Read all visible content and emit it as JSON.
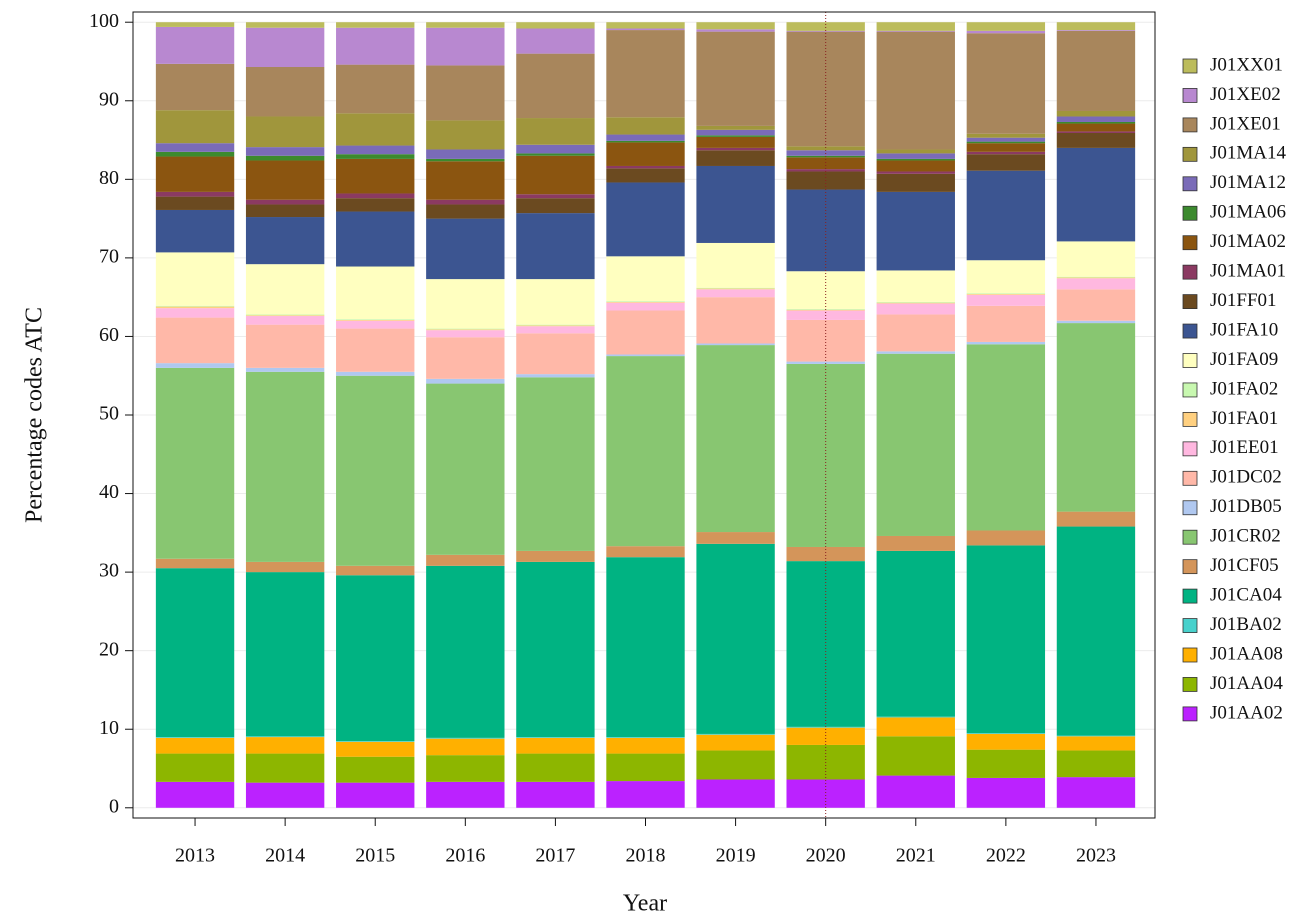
{
  "chart_data": {
    "type": "stacked_bar",
    "x_label": "Year",
    "y_label": "Percentage codes ATC",
    "categories": [
      "2013",
      "2014",
      "2015",
      "2016",
      "2017",
      "2018",
      "2019",
      "2020",
      "2021",
      "2022",
      "2023"
    ],
    "ylim": [
      -1.3,
      101.3
    ],
    "yticks": [
      0,
      10,
      20,
      30,
      40,
      50,
      60,
      70,
      80,
      90,
      100
    ],
    "grid": true,
    "legend": "right",
    "series": [
      {
        "name": "J01AA02",
        "color": "#bb22ff",
        "values": [
          3.3,
          3.2,
          3.2,
          3.3,
          3.3,
          3.4,
          3.6,
          3.6,
          4.1,
          3.8,
          3.9
        ]
      },
      {
        "name": "J01AA04",
        "color": "#8db600",
        "values": [
          3.6,
          3.7,
          3.3,
          3.4,
          3.6,
          3.5,
          3.7,
          4.4,
          5.0,
          3.6,
          3.4
        ]
      },
      {
        "name": "J01AA08",
        "color": "#ffb000",
        "values": [
          2.0,
          2.1,
          1.9,
          2.1,
          2.0,
          2.0,
          2.0,
          2.2,
          2.4,
          2.0,
          1.8
        ]
      },
      {
        "name": "J01BA02",
        "color": "#48d1cc",
        "values": [
          0.1,
          0.1,
          0.1,
          0.1,
          0.1,
          0.1,
          0.1,
          0.1,
          0.1,
          0.1,
          0.1
        ]
      },
      {
        "name": "J01CA04",
        "color": "#00b382",
        "values": [
          21.5,
          20.9,
          21.1,
          21.9,
          22.3,
          22.9,
          24.2,
          21.1,
          21.1,
          23.9,
          26.6
        ]
      },
      {
        "name": "J01CF05",
        "color": "#d4955a",
        "values": [
          1.2,
          1.3,
          1.2,
          1.4,
          1.4,
          1.4,
          1.5,
          1.8,
          1.9,
          1.9,
          1.9
        ]
      },
      {
        "name": "J01CR02",
        "color": "#88c671",
        "values": [
          24.3,
          24.2,
          24.2,
          21.8,
          22.1,
          24.2,
          23.8,
          23.3,
          23.2,
          23.7,
          24.0
        ]
      },
      {
        "name": "J01DB05",
        "color": "#b0c8f0",
        "values": [
          0.6,
          0.5,
          0.5,
          0.6,
          0.4,
          0.2,
          0.2,
          0.3,
          0.3,
          0.3,
          0.3
        ]
      },
      {
        "name": "J01DC02",
        "color": "#ffb8a8",
        "values": [
          5.8,
          5.5,
          5.5,
          5.3,
          5.2,
          5.6,
          5.9,
          5.3,
          4.7,
          4.6,
          4.0
        ]
      },
      {
        "name": "J01EE01",
        "color": "#ffb8e0",
        "values": [
          1.2,
          1.1,
          1.0,
          0.9,
          0.9,
          1.0,
          1.0,
          1.2,
          1.4,
          1.4,
          1.4
        ]
      },
      {
        "name": "J01FA01",
        "color": "#ffd080",
        "values": [
          0.2,
          0.1,
          0.1,
          0.1,
          0.1,
          0.1,
          0.1,
          0.1,
          0.1,
          0.1,
          0.1
        ]
      },
      {
        "name": "J01FA02",
        "color": "#c8f8b0",
        "values": [
          0.1,
          0.1,
          0.1,
          0.1,
          0.1,
          0.1,
          0.1,
          0.1,
          0.1,
          0.1,
          0.1
        ]
      },
      {
        "name": "J01FA09",
        "color": "#ffffc0",
        "values": [
          6.8,
          6.4,
          6.7,
          6.3,
          5.8,
          5.7,
          5.7,
          4.8,
          4.0,
          4.2,
          4.5
        ]
      },
      {
        "name": "J01FA10",
        "color": "#3c5591",
        "values": [
          5.4,
          6.0,
          7.0,
          7.7,
          8.4,
          9.4,
          9.8,
          10.4,
          10.0,
          11.4,
          11.9
        ]
      },
      {
        "name": "J01FF01",
        "color": "#6b4a20",
        "values": [
          1.7,
          1.6,
          1.7,
          1.8,
          1.9,
          1.8,
          2.0,
          2.3,
          2.3,
          2.1,
          1.9
        ]
      },
      {
        "name": "J01MA01",
        "color": "#8b3a62",
        "values": [
          0.6,
          0.6,
          0.6,
          0.6,
          0.5,
          0.3,
          0.3,
          0.3,
          0.3,
          0.3,
          0.2
        ]
      },
      {
        "name": "J01MA02",
        "color": "#8b5510",
        "values": [
          4.5,
          5.0,
          4.4,
          4.9,
          4.9,
          3.0,
          1.4,
          1.5,
          1.4,
          1.1,
          1.0
        ]
      },
      {
        "name": "J01MA06",
        "color": "#3c8a2e",
        "values": [
          0.6,
          0.6,
          0.6,
          0.3,
          0.3,
          0.2,
          0.2,
          0.2,
          0.2,
          0.2,
          0.2
        ]
      },
      {
        "name": "J01MA12",
        "color": "#7a6bb8",
        "values": [
          1.1,
          1.1,
          1.1,
          1.2,
          1.1,
          0.8,
          0.7,
          0.7,
          0.7,
          0.5,
          0.7
        ]
      },
      {
        "name": "J01MA14",
        "color": "#a0963c",
        "values": [
          4.2,
          3.9,
          4.1,
          3.7,
          3.4,
          2.2,
          0.5,
          0.5,
          0.5,
          0.5,
          0.7
        ]
      },
      {
        "name": "J01XE01",
        "color": "#a8865c",
        "values": [
          5.9,
          6.3,
          6.2,
          7.0,
          8.2,
          11.1,
          12.0,
          14.6,
          15.0,
          12.8,
          10.2
        ]
      },
      {
        "name": "J01XE02",
        "color": "#b888d0",
        "values": [
          4.7,
          5.0,
          4.7,
          4.8,
          3.2,
          0.2,
          0.3,
          0.1,
          0.1,
          0.3,
          0.1
        ]
      },
      {
        "name": "J01XX01",
        "color": "#bcbc5c",
        "values": [
          0.6,
          0.7,
          0.7,
          0.7,
          0.8,
          0.8,
          0.9,
          1.1,
          1.1,
          1.1,
          1.0
        ]
      }
    ]
  }
}
